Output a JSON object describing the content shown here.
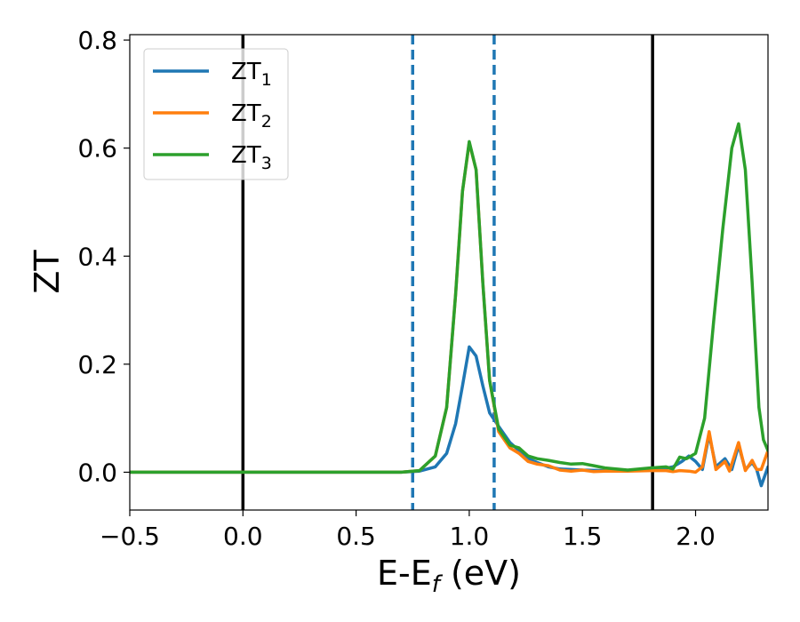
{
  "chart_data": {
    "type": "line",
    "xlabel": "E-E",
    "xlabel_sub": "f",
    "xlabel_unit": " (eV)",
    "ylabel": "ZT",
    "xlim": [
      -0.5,
      2.32
    ],
    "ylim": [
      -0.07,
      0.81
    ],
    "xticks": [
      -0.5,
      0.0,
      0.5,
      1.0,
      1.5,
      2.0
    ],
    "xtick_labels": [
      "−0.5",
      "0.0",
      "0.5",
      "1.0",
      "1.5",
      "2.0"
    ],
    "yticks": [
      0.0,
      0.2,
      0.4,
      0.6,
      0.8
    ],
    "ytick_labels": [
      "0.0",
      "0.2",
      "0.4",
      "0.6",
      "0.8"
    ],
    "legend_position": "top-left",
    "vlines": [
      {
        "x": 0.0,
        "style": "solid",
        "color": "#000000"
      },
      {
        "x": 0.75,
        "style": "dashed",
        "color": "#1f77b4"
      },
      {
        "x": 1.11,
        "style": "dashed",
        "color": "#1f77b4"
      },
      {
        "x": 1.81,
        "style": "solid",
        "color": "#000000"
      }
    ],
    "series": [
      {
        "name": "ZT",
        "sub": "1",
        "color": "#1f77b4",
        "points": [
          [
            -0.5,
            0
          ],
          [
            0.7,
            0
          ],
          [
            0.78,
            0.002
          ],
          [
            0.85,
            0.01
          ],
          [
            0.9,
            0.035
          ],
          [
            0.94,
            0.09
          ],
          [
            0.97,
            0.16
          ],
          [
            1.0,
            0.232
          ],
          [
            1.03,
            0.215
          ],
          [
            1.06,
            0.16
          ],
          [
            1.09,
            0.11
          ],
          [
            1.13,
            0.085
          ],
          [
            1.18,
            0.055
          ],
          [
            1.22,
            0.04
          ],
          [
            1.26,
            0.025
          ],
          [
            1.3,
            0.018
          ],
          [
            1.35,
            0.01
          ],
          [
            1.4,
            0.006
          ],
          [
            1.5,
            0.004
          ],
          [
            1.6,
            0.003
          ],
          [
            1.7,
            0.003
          ],
          [
            1.8,
            0.004
          ],
          [
            1.85,
            0.006
          ],
          [
            1.9,
            0.01
          ],
          [
            1.94,
            0.02
          ],
          [
            1.97,
            0.03
          ],
          [
            2.0,
            0.02
          ],
          [
            2.03,
            0.005
          ],
          [
            2.06,
            0.07
          ],
          [
            2.09,
            0.01
          ],
          [
            2.13,
            0.025
          ],
          [
            2.16,
            0.005
          ],
          [
            2.19,
            0.05
          ],
          [
            2.22,
            0.005
          ],
          [
            2.25,
            0.018
          ],
          [
            2.27,
            0.005
          ],
          [
            2.29,
            -0.025
          ],
          [
            2.32,
            0.01
          ]
        ]
      },
      {
        "name": "ZT",
        "sub": "2",
        "color": "#ff7f0e",
        "points": [
          [
            -0.5,
            0
          ],
          [
            0.7,
            0
          ],
          [
            0.78,
            0.003
          ],
          [
            0.85,
            0.03
          ],
          [
            0.9,
            0.12
          ],
          [
            0.94,
            0.33
          ],
          [
            0.97,
            0.52
          ],
          [
            1.0,
            0.61
          ],
          [
            1.03,
            0.56
          ],
          [
            1.06,
            0.35
          ],
          [
            1.09,
            0.17
          ],
          [
            1.13,
            0.075
          ],
          [
            1.18,
            0.045
          ],
          [
            1.22,
            0.035
          ],
          [
            1.26,
            0.02
          ],
          [
            1.3,
            0.015
          ],
          [
            1.35,
            0.012
          ],
          [
            1.4,
            0.004
          ],
          [
            1.45,
            0.002
          ],
          [
            1.5,
            0.004
          ],
          [
            1.55,
            0.001
          ],
          [
            1.6,
            0.002
          ],
          [
            1.7,
            0.002
          ],
          [
            1.8,
            0.003
          ],
          [
            1.87,
            0.003
          ],
          [
            1.9,
            0.001
          ],
          [
            1.93,
            0.003
          ],
          [
            1.97,
            0.002
          ],
          [
            2.0,
            0.0
          ],
          [
            2.03,
            0.01
          ],
          [
            2.06,
            0.075
          ],
          [
            2.09,
            0.005
          ],
          [
            2.13,
            0.02
          ],
          [
            2.15,
            0.002
          ],
          [
            2.19,
            0.055
          ],
          [
            2.22,
            0.003
          ],
          [
            2.25,
            0.022
          ],
          [
            2.27,
            0.005
          ],
          [
            2.29,
            0.005
          ],
          [
            2.32,
            0.04
          ]
        ]
      },
      {
        "name": "ZT",
        "sub": "3",
        "color": "#2ca02c",
        "points": [
          [
            -0.5,
            0
          ],
          [
            0.7,
            0
          ],
          [
            0.78,
            0.003
          ],
          [
            0.85,
            0.03
          ],
          [
            0.9,
            0.12
          ],
          [
            0.94,
            0.33
          ],
          [
            0.97,
            0.52
          ],
          [
            1.0,
            0.612
          ],
          [
            1.03,
            0.56
          ],
          [
            1.06,
            0.35
          ],
          [
            1.09,
            0.17
          ],
          [
            1.13,
            0.08
          ],
          [
            1.18,
            0.05
          ],
          [
            1.22,
            0.045
          ],
          [
            1.26,
            0.03
          ],
          [
            1.3,
            0.025
          ],
          [
            1.35,
            0.022
          ],
          [
            1.4,
            0.018
          ],
          [
            1.45,
            0.015
          ],
          [
            1.5,
            0.016
          ],
          [
            1.55,
            0.012
          ],
          [
            1.6,
            0.008
          ],
          [
            1.7,
            0.004
          ],
          [
            1.8,
            0.008
          ],
          [
            1.87,
            0.01
          ],
          [
            1.9,
            0.006
          ],
          [
            1.93,
            0.028
          ],
          [
            1.96,
            0.025
          ],
          [
            2.0,
            0.035
          ],
          [
            2.04,
            0.1
          ],
          [
            2.08,
            0.28
          ],
          [
            2.12,
            0.45
          ],
          [
            2.16,
            0.6
          ],
          [
            2.19,
            0.645
          ],
          [
            2.22,
            0.56
          ],
          [
            2.25,
            0.35
          ],
          [
            2.28,
            0.12
          ],
          [
            2.3,
            0.06
          ],
          [
            2.32,
            0.04
          ]
        ]
      }
    ]
  }
}
